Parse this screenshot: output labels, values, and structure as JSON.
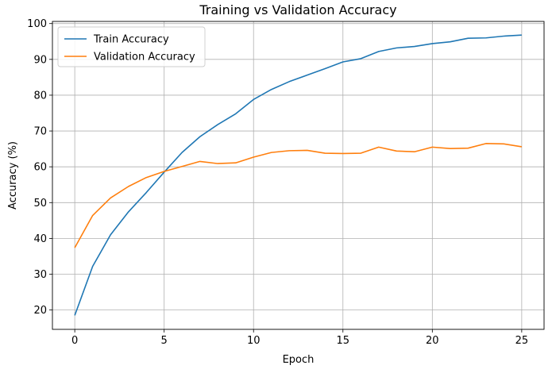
{
  "chart_data": {
    "type": "line",
    "title": "Training vs Validation Accuracy",
    "xlabel": "Epoch",
    "ylabel": "Accuracy (%)",
    "xlim": [
      -1.25,
      26.25
    ],
    "ylim": [
      14.6,
      100.6
    ],
    "xticks": [
      0,
      5,
      10,
      15,
      20,
      25
    ],
    "yticks": [
      20,
      30,
      40,
      50,
      60,
      70,
      80,
      90,
      100
    ],
    "grid": true,
    "legend_position": "upper-left",
    "x": [
      0,
      1,
      2,
      3,
      4,
      5,
      6,
      7,
      8,
      9,
      10,
      11,
      12,
      13,
      14,
      15,
      16,
      17,
      18,
      19,
      20,
      21,
      22,
      23,
      24,
      25
    ],
    "series": [
      {
        "name": "Train Accuracy",
        "color": "#1f77b4",
        "values": [
          18.5,
          32.2,
          41.0,
          47.4,
          52.8,
          58.5,
          64.0,
          68.4,
          71.8,
          74.8,
          78.8,
          81.6,
          83.8,
          85.6,
          87.4,
          89.3,
          90.2,
          92.2,
          93.2,
          93.6,
          94.4,
          94.9,
          95.9,
          96.0,
          96.5,
          96.8
        ]
      },
      {
        "name": "Validation Accuracy",
        "color": "#ff7f0e",
        "values": [
          37.4,
          46.4,
          51.3,
          54.5,
          57.0,
          58.7,
          60.1,
          61.5,
          60.9,
          61.1,
          62.7,
          64.0,
          64.5,
          64.6,
          63.8,
          63.7,
          63.8,
          65.5,
          64.4,
          64.2,
          65.5,
          65.1,
          65.2,
          66.5,
          66.4,
          65.6
        ]
      }
    ]
  }
}
